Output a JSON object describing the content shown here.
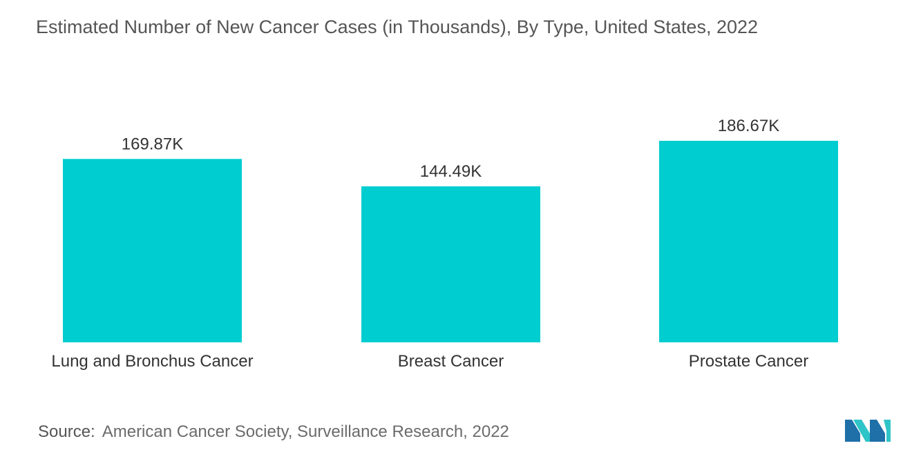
{
  "title": "Estimated Number of New Cancer Cases (in Thousands), By Type, United States, 2022",
  "source": {
    "label": "Source:",
    "text": "American Cancer Society, Surveillance Research, 2022"
  },
  "colors": {
    "bar": "#00CDD0",
    "logo_dark": "#1F6FA8",
    "logo_light": "#2EC4C8"
  },
  "chart_data": {
    "type": "bar",
    "title": "Estimated Number of New Cancer Cases (in Thousands), By Type, United States, 2022",
    "categories": [
      "Lung and Bronchus Cancer",
      "Breast Cancer",
      "Prostate Cancer"
    ],
    "values": [
      169.87,
      144.49,
      186.67
    ],
    "value_labels": [
      "169.87K",
      "144.49K",
      "186.67K"
    ],
    "xlabel": "",
    "ylabel": "",
    "ylim": [
      0,
      186.67
    ],
    "grid": false,
    "legend": "none"
  }
}
